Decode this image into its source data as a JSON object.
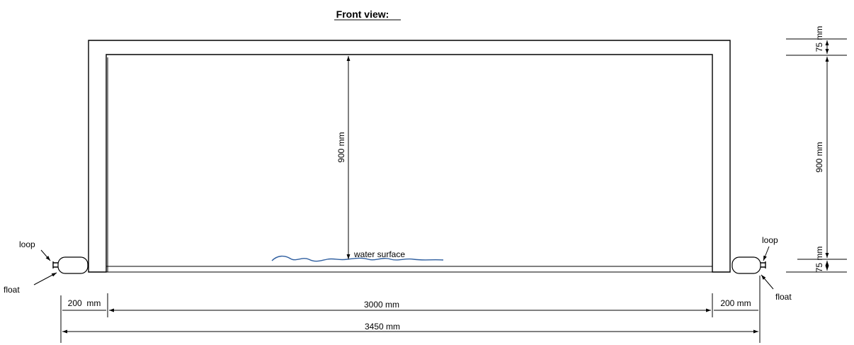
{
  "title": "Front view:",
  "labels": {
    "loop_left": "loop",
    "float_left": "float",
    "loop_right": "loop",
    "float_right": "float",
    "water_surface": "water surface"
  },
  "dimensions": {
    "inner_height": "900 mm",
    "right_top": "75 mm",
    "right_middle": "900 mm",
    "right_bottom": "75 mm",
    "left_width": "200  mm",
    "inner_width": "3000 mm",
    "right_width": "200 mm",
    "total_width": "3450 mm"
  },
  "colors": {
    "line": "#000000",
    "water": "#2f5fa0"
  }
}
